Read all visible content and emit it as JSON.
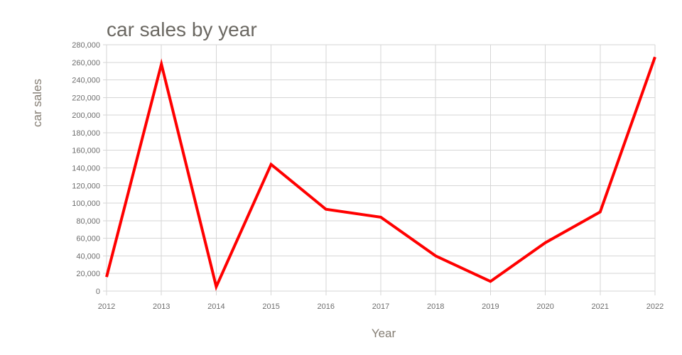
{
  "chart": {
    "title": "car sales by year",
    "y_axis_title": "car sales",
    "x_axis_title": "Year"
  },
  "chart_data": {
    "type": "line",
    "title": "car sales by year",
    "xlabel": "Year",
    "ylabel": "car sales",
    "categories": [
      "2012",
      "2013",
      "2014",
      "2015",
      "2016",
      "2017",
      "2018",
      "2019",
      "2020",
      "2021",
      "2022"
    ],
    "values": [
      16000,
      258000,
      5000,
      144000,
      93000,
      84000,
      40000,
      11000,
      55000,
      90000,
      266000
    ],
    "ylim": [
      0,
      280000
    ],
    "y_tick_step": 20000,
    "y_tick_labels": [
      "0",
      "20,000",
      "40,000",
      "60,000",
      "80,000",
      "100,000",
      "120,000",
      "140,000",
      "160,000",
      "180,000",
      "200,000",
      "220,000",
      "240,000",
      "260,000",
      "280,000"
    ],
    "grid": true,
    "legend": false,
    "line_color": "#ff0000",
    "line_width": 4,
    "grid_color": "#d6d6d6",
    "tick_label_color": "#6e6e6e",
    "title_color": "#6b6862",
    "axis_title_color": "#847d73"
  }
}
